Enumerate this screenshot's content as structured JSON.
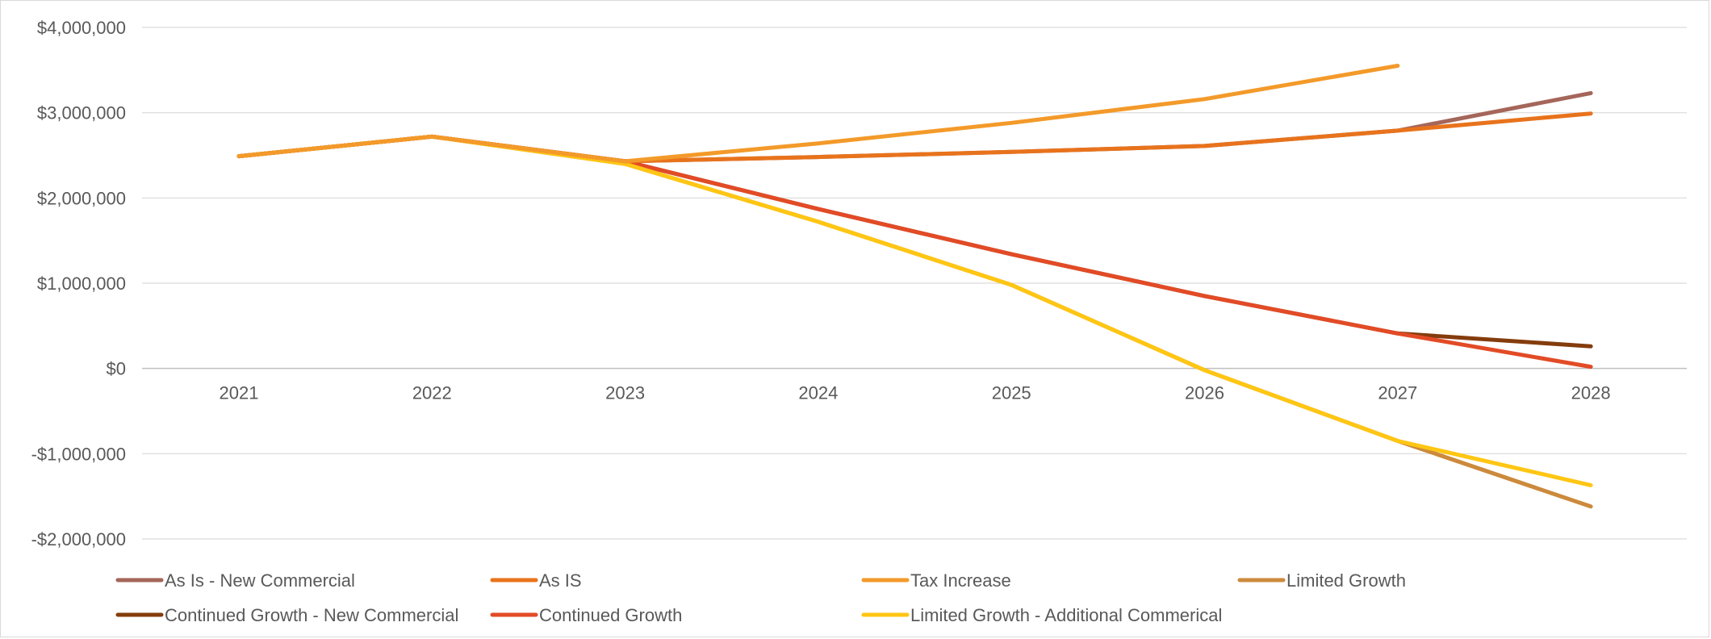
{
  "chart_data": {
    "type": "line",
    "title": "",
    "xlabel": "",
    "ylabel": "",
    "categories": [
      "2021",
      "2022",
      "2023",
      "2024",
      "2025",
      "2026",
      "2027",
      "2028"
    ],
    "ylim": [
      -2000000,
      4000000
    ],
    "y_ticks": [
      4000000,
      3000000,
      2000000,
      1000000,
      0,
      -1000000,
      -2000000
    ],
    "y_tick_labels": [
      "$4,000,000",
      "$3,000,000",
      "$2,000,000",
      "$1,000,000",
      "$0",
      "-$1,000,000",
      "-$2,000,000"
    ],
    "grid": true,
    "legend_position": "bottom",
    "series": [
      {
        "name": "As Is - New Commercial",
        "color": "#A5665A",
        "values": [
          2490000,
          2720000,
          2430000,
          2480000,
          2540000,
          2610000,
          2790000,
          3230000
        ]
      },
      {
        "name": "As IS",
        "color": "#E8731C",
        "values": [
          2490000,
          2720000,
          2430000,
          2480000,
          2540000,
          2610000,
          2790000,
          2990000
        ]
      },
      {
        "name": "Tax Increase",
        "color": "#F39A2A",
        "values": [
          2490000,
          2720000,
          2430000,
          2640000,
          2880000,
          3160000,
          3550000,
          null
        ]
      },
      {
        "name": "Limited Growth",
        "color": "#CC8A3C",
        "values": [
          2490000,
          2720000,
          2400000,
          1720000,
          980000,
          -20000,
          -850000,
          -1620000
        ]
      },
      {
        "name": "Continued Growth - New Commercial",
        "color": "#843C0C",
        "values": [
          2490000,
          2720000,
          2430000,
          1870000,
          1340000,
          850000,
          410000,
          260000
        ]
      },
      {
        "name": "Continued Growth",
        "color": "#E24B26",
        "values": [
          2490000,
          2720000,
          2430000,
          1870000,
          1340000,
          850000,
          410000,
          20000
        ]
      },
      {
        "name": "Limited Growth - Additional Commerical",
        "color": "#FFC613",
        "values": [
          2490000,
          2720000,
          2400000,
          1720000,
          980000,
          -20000,
          -850000,
          -1370000
        ]
      }
    ]
  }
}
